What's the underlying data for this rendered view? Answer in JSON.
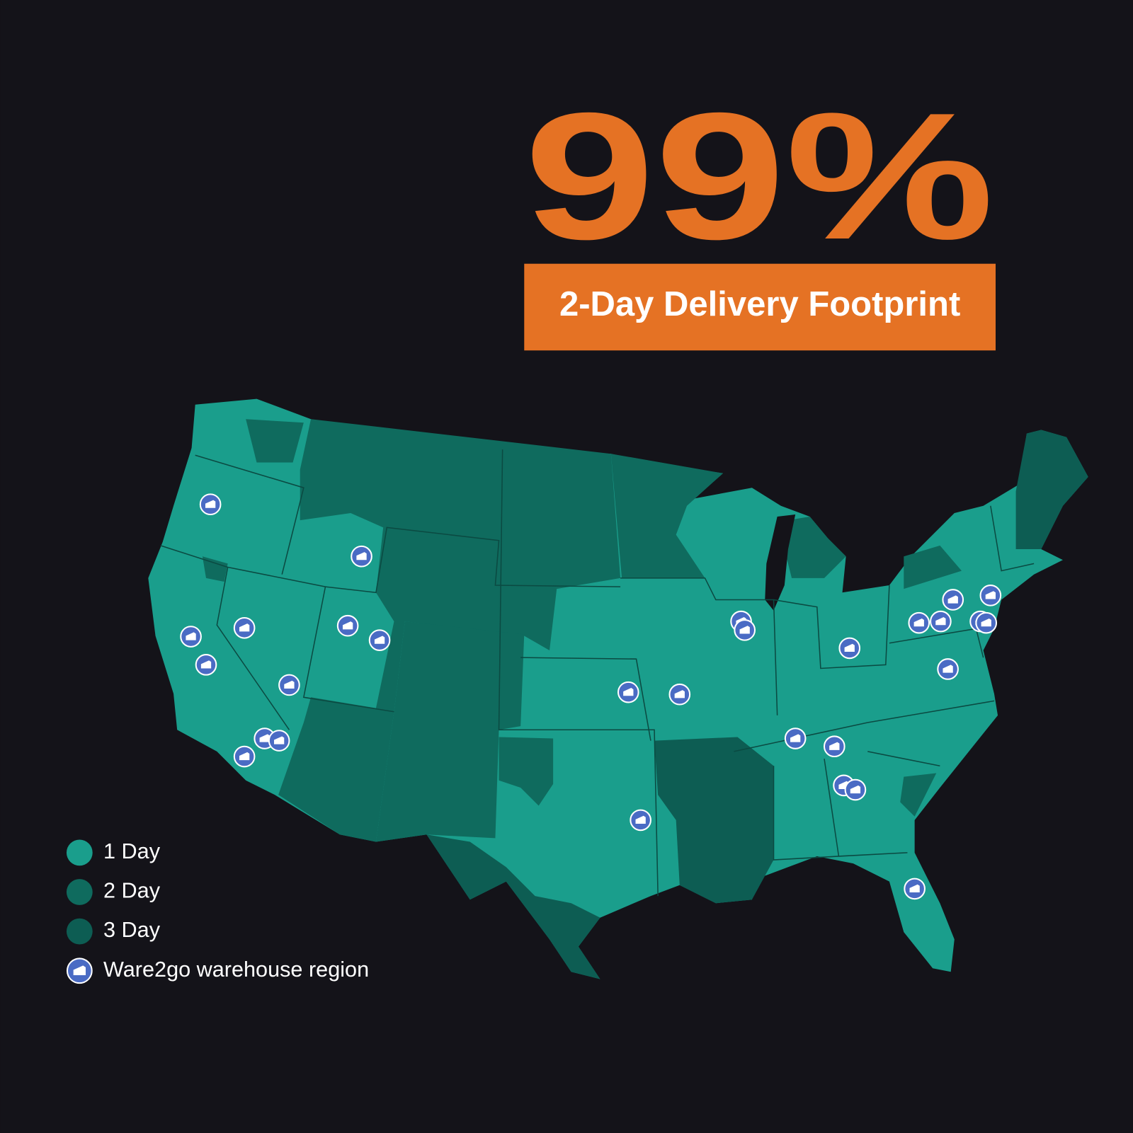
{
  "headline": {
    "stat": "99%",
    "caption": "2-Day Delivery Footprint",
    "accent": "#e57224"
  },
  "legend": [
    {
      "label": "1 Day",
      "color": "#1a9e8c"
    },
    {
      "label": "2 Day",
      "color": "#0f6b5e"
    },
    {
      "label": "3 Day",
      "color": "#0d5d53"
    },
    {
      "label": "Ware2go warehouse region",
      "color": "#4a6bc4"
    }
  ]
}
